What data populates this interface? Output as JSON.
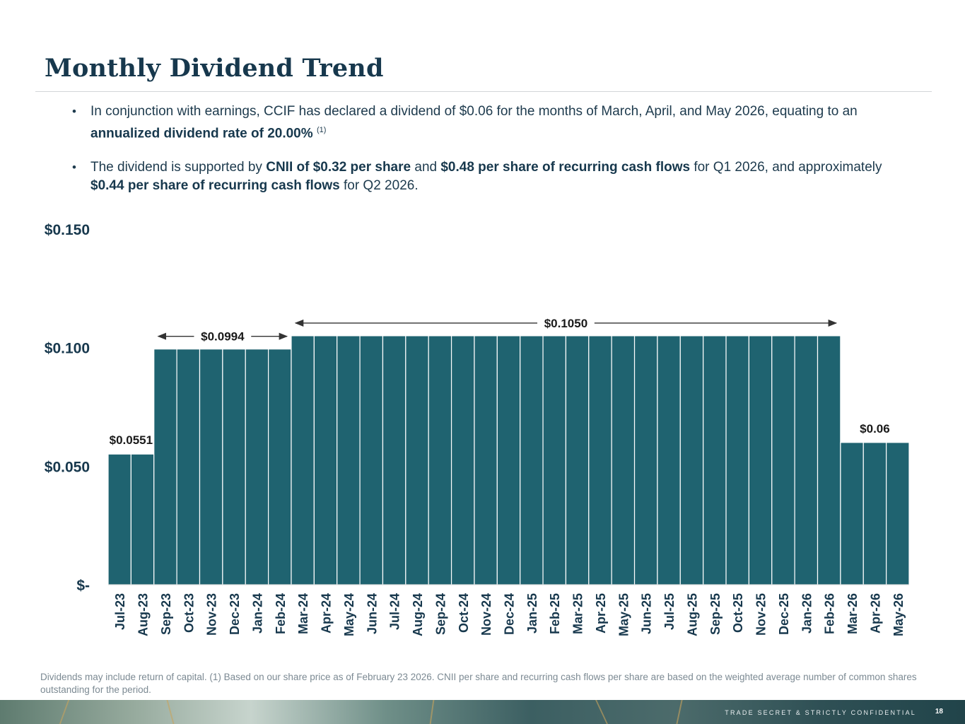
{
  "title": "Monthly Dividend Trend",
  "bullets": [
    {
      "p1": "In conjunction with earnings, CCIF has declared a dividend of $0.06 for the months of March, April, and May 2026, equating to an ",
      "b1": "annualized dividend rate of 20.00%",
      "sup": "(1)"
    },
    {
      "p1": "The dividend is supported by ",
      "b1": "CNII of $0.32 per share",
      "p2": " and  ",
      "b2": "$0.48 per share of recurring cash flows",
      "p3": " for Q1 2026, and approximately ",
      "b3": "$0.44 per share of recurring cash flows",
      "p4": " for Q2 2026."
    }
  ],
  "chart_data": {
    "type": "bar",
    "title": "",
    "xlabel": "",
    "ylabel": "",
    "ylim": [
      0,
      0.15
    ],
    "yticks": [
      {
        "value": 0,
        "label": "$-"
      },
      {
        "value": 0.05,
        "label": "$0.050"
      },
      {
        "value": 0.1,
        "label": "$0.100"
      },
      {
        "value": 0.15,
        "label": "$0.150"
      }
    ],
    "categories": [
      "Jul-23",
      "Aug-23",
      "Sep-23",
      "Oct-23",
      "Nov-23",
      "Dec-23",
      "Jan-24",
      "Feb-24",
      "Mar-24",
      "Apr-24",
      "May-24",
      "Jun-24",
      "Jul-24",
      "Aug-24",
      "Sep-24",
      "Oct-24",
      "Nov-24",
      "Dec-24",
      "Jan-25",
      "Feb-25",
      "Mar-25",
      "Apr-25",
      "May-25",
      "Jun-25",
      "Jul-25",
      "Aug-25",
      "Sep-25",
      "Oct-25",
      "Nov-25",
      "Dec-25",
      "Jan-26",
      "Feb-26",
      "Mar-26",
      "Apr-26",
      "May-26"
    ],
    "values": [
      0.0551,
      0.0551,
      0.0994,
      0.0994,
      0.0994,
      0.0994,
      0.0994,
      0.0994,
      0.105,
      0.105,
      0.105,
      0.105,
      0.105,
      0.105,
      0.105,
      0.105,
      0.105,
      0.105,
      0.105,
      0.105,
      0.105,
      0.105,
      0.105,
      0.105,
      0.105,
      0.105,
      0.105,
      0.105,
      0.105,
      0.105,
      0.105,
      0.105,
      0.06,
      0.06,
      0.06
    ],
    "bar_color": "#1f6370",
    "annotations": [
      {
        "text": "$0.0551",
        "start": 0,
        "end": 1,
        "value": 0.0551,
        "arrow": false
      },
      {
        "text": "$0.0994",
        "start": 2,
        "end": 7,
        "value": 0.0994,
        "arrow": true
      },
      {
        "text": "$0.1050",
        "start": 8,
        "end": 31,
        "value": 0.105,
        "arrow": true
      },
      {
        "text": "$0.06",
        "start": 32,
        "end": 34,
        "value": 0.06,
        "arrow": false
      }
    ]
  },
  "footnote": "Dividends may include return of capital. (1) Based on our share price as of February 23 2026. CNII per share and recurring cash flows per share are based on the weighted average number of common shares outstanding for the period.",
  "footer": {
    "confidential": "TRADE SECRET & STRICTLY CONFIDENTIAL",
    "page_number": "18"
  }
}
